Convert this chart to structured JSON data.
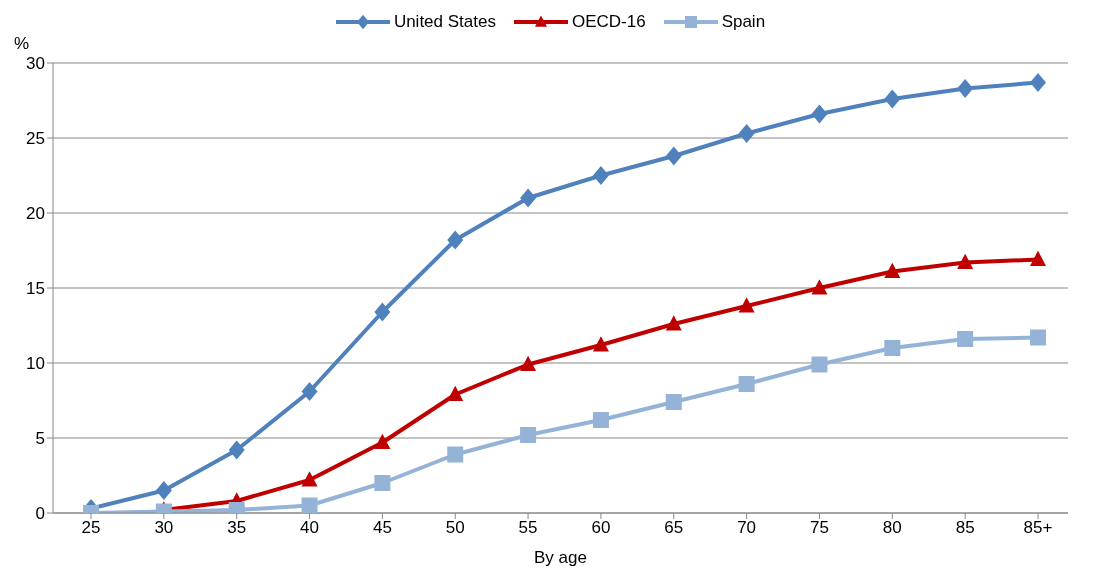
{
  "chart_data": {
    "type": "line",
    "xlabel": "By age",
    "ylabel": "%",
    "categories": [
      "25",
      "30",
      "35",
      "40",
      "45",
      "50",
      "55",
      "60",
      "65",
      "70",
      "75",
      "80",
      "85",
      "85+"
    ],
    "series": [
      {
        "name": "United States",
        "color": "#4f81bd",
        "marker": "diamond",
        "values": [
          0.3,
          1.5,
          4.2,
          8.1,
          13.4,
          18.2,
          21.0,
          22.5,
          23.8,
          25.3,
          26.6,
          27.6,
          28.3,
          28.7
        ]
      },
      {
        "name": "OECD-16",
        "color": "#c00000",
        "marker": "triangle",
        "values": [
          null,
          0.2,
          0.8,
          2.2,
          4.7,
          7.9,
          9.9,
          11.2,
          12.6,
          13.8,
          15.0,
          16.1,
          16.7,
          16.9
        ]
      },
      {
        "name": "Spain",
        "color": "#95b3d7",
        "marker": "square",
        "values": [
          0,
          0.1,
          0.2,
          0.5,
          2.0,
          3.9,
          5.2,
          6.2,
          7.4,
          8.6,
          9.9,
          11.0,
          11.6,
          11.7
        ]
      }
    ],
    "ylim": [
      0,
      30
    ],
    "yticks": [
      0,
      5,
      10,
      15,
      20,
      25,
      30
    ],
    "grid": "y",
    "legend": "top",
    "line_style": "solid"
  }
}
